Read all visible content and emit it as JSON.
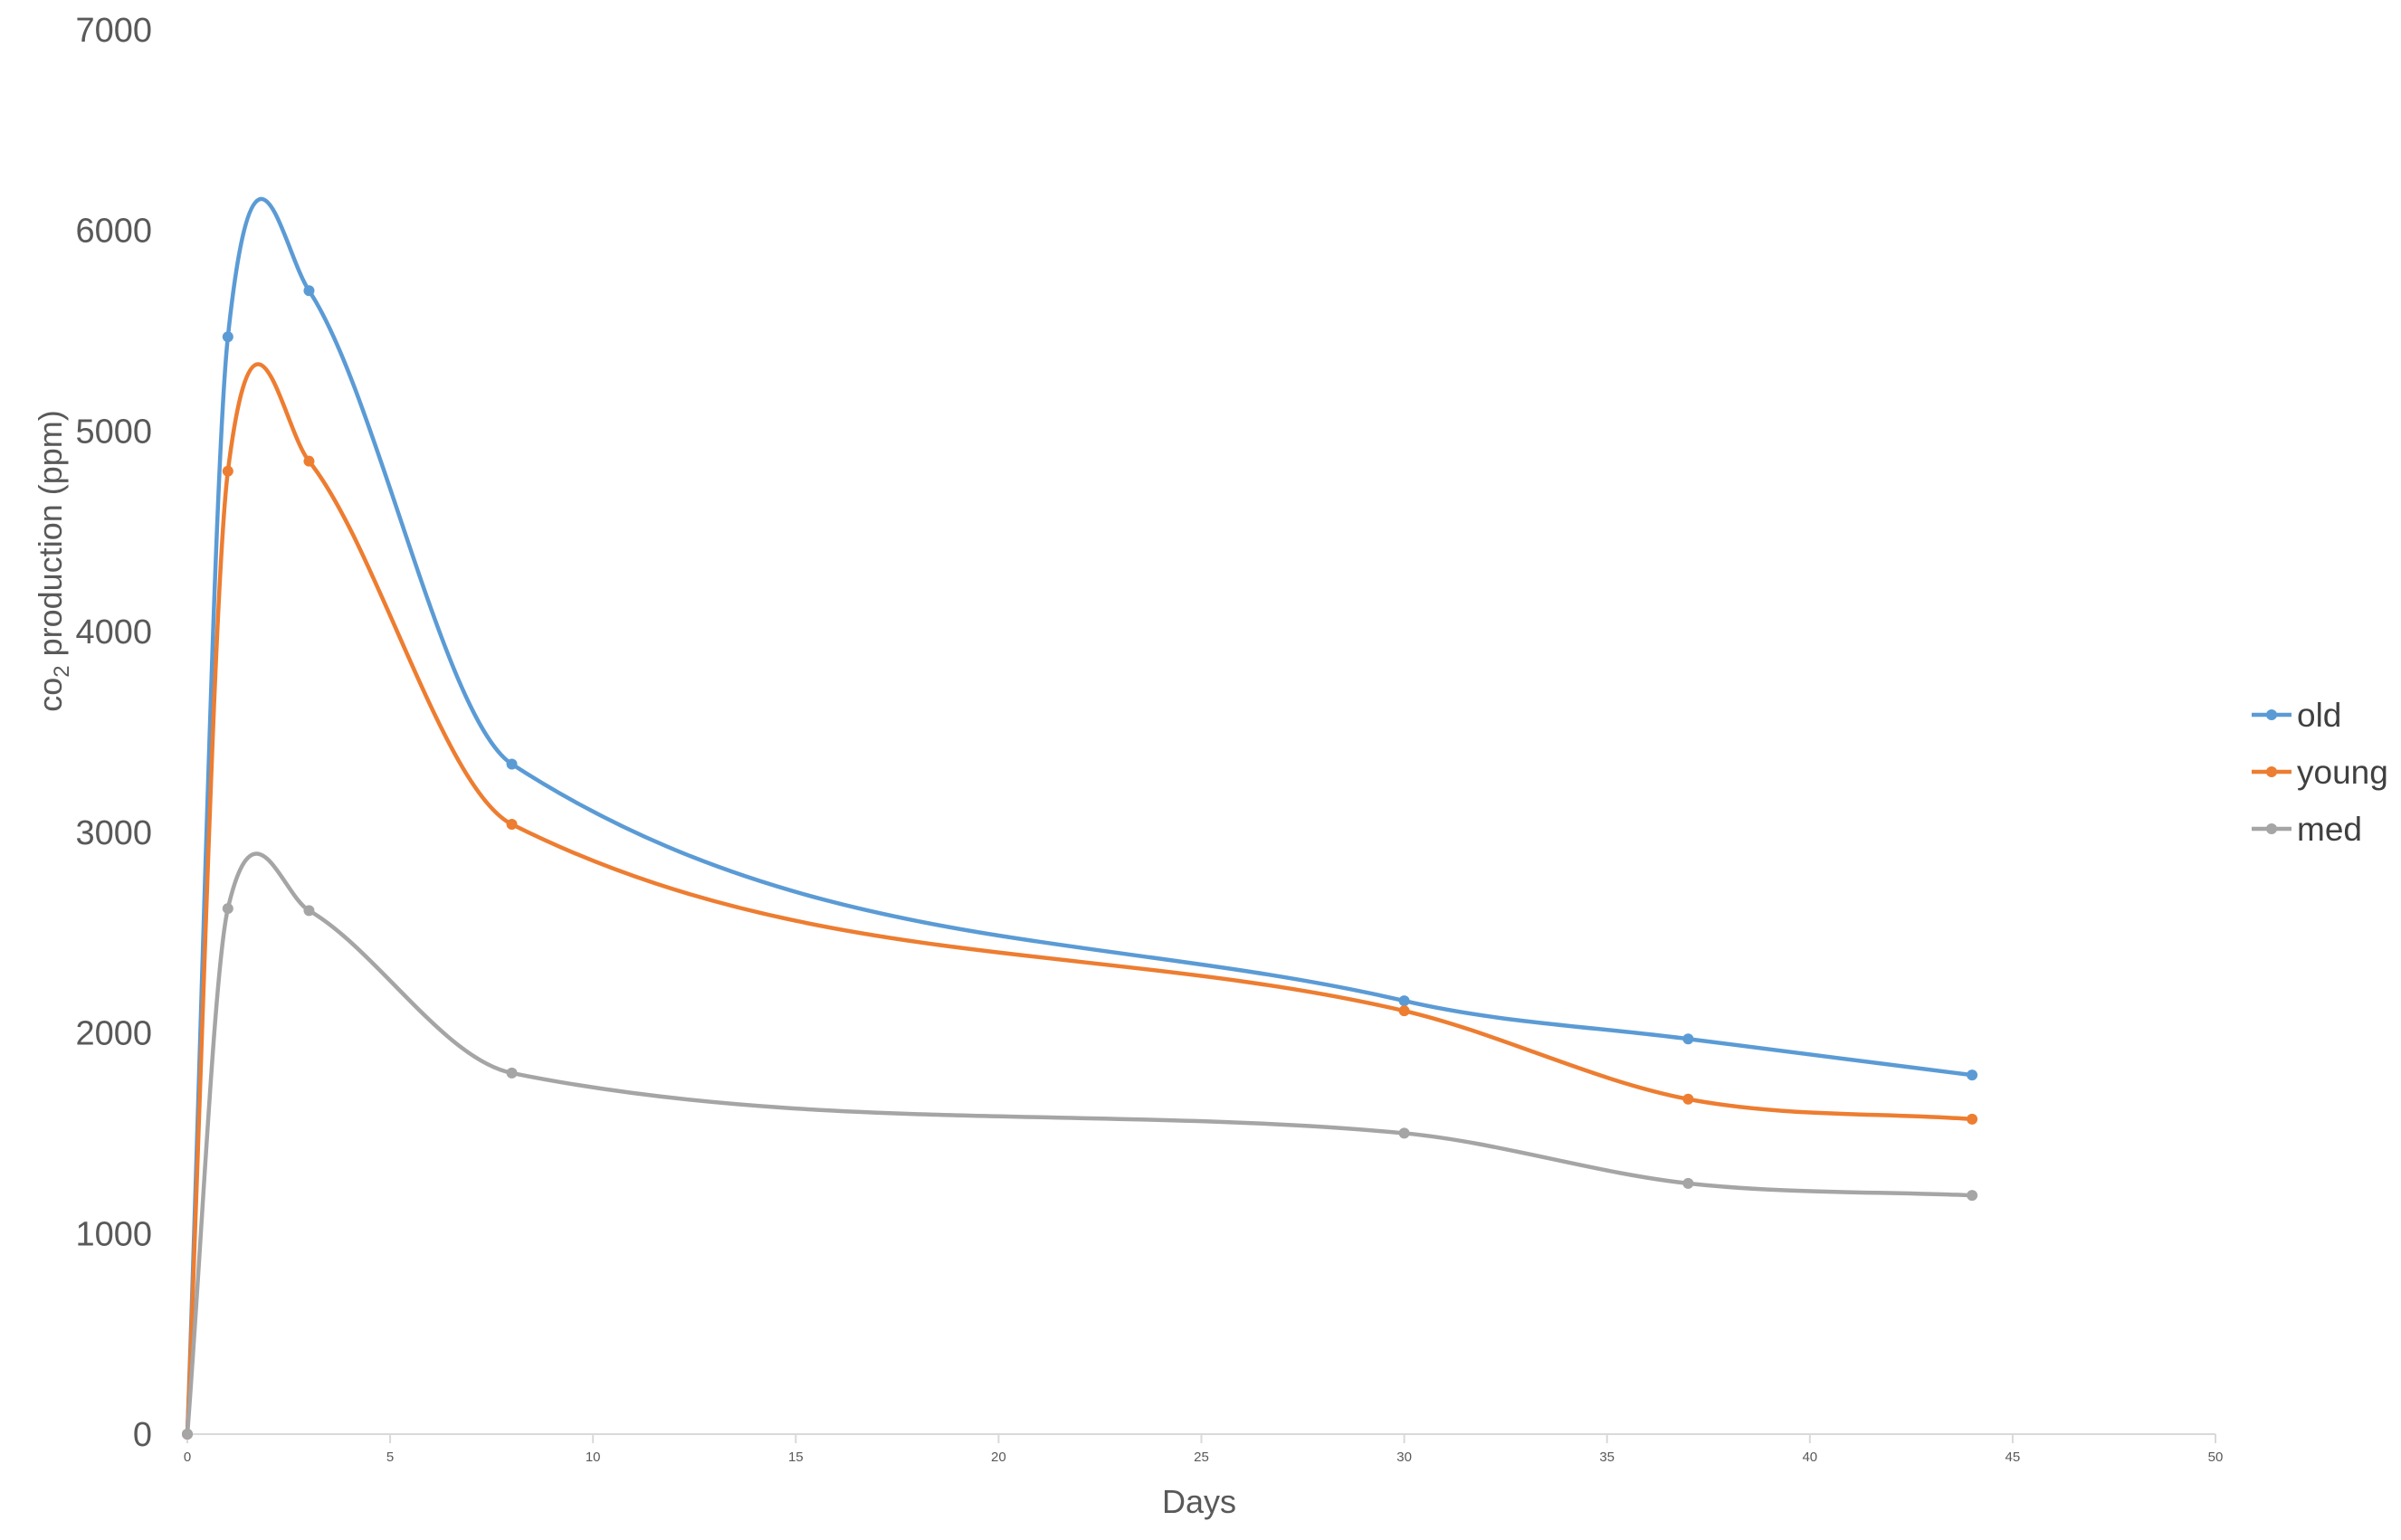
{
  "chart_data": {
    "type": "line",
    "xlabel": "Days",
    "ylabel": {
      "main": "co",
      "subscript": "2",
      "rest": " production (ppm)"
    },
    "xlim": [
      0,
      50
    ],
    "ylim": [
      0,
      7000
    ],
    "x_ticks": [
      0,
      5,
      10,
      15,
      20,
      25,
      30,
      35,
      40,
      45,
      50
    ],
    "y_ticks": [
      0,
      1000,
      2000,
      3000,
      4000,
      5000,
      6000,
      7000
    ],
    "grid": false,
    "smooth": true,
    "legend_position": "right",
    "x": [
      0,
      1,
      3,
      8,
      30,
      37,
      44
    ],
    "series": [
      {
        "name": "old",
        "color": "#5b9bd5",
        "values": [
          0,
          5470,
          5700,
          3340,
          2160,
          1970,
          1790
        ]
      },
      {
        "name": "young",
        "color": "#ed7d31",
        "values": [
          0,
          4800,
          4850,
          3040,
          2110,
          1670,
          1570
        ]
      },
      {
        "name": "med",
        "color": "#a5a5a5",
        "values": [
          0,
          2620,
          2610,
          1800,
          1500,
          1250,
          1190
        ]
      }
    ]
  }
}
